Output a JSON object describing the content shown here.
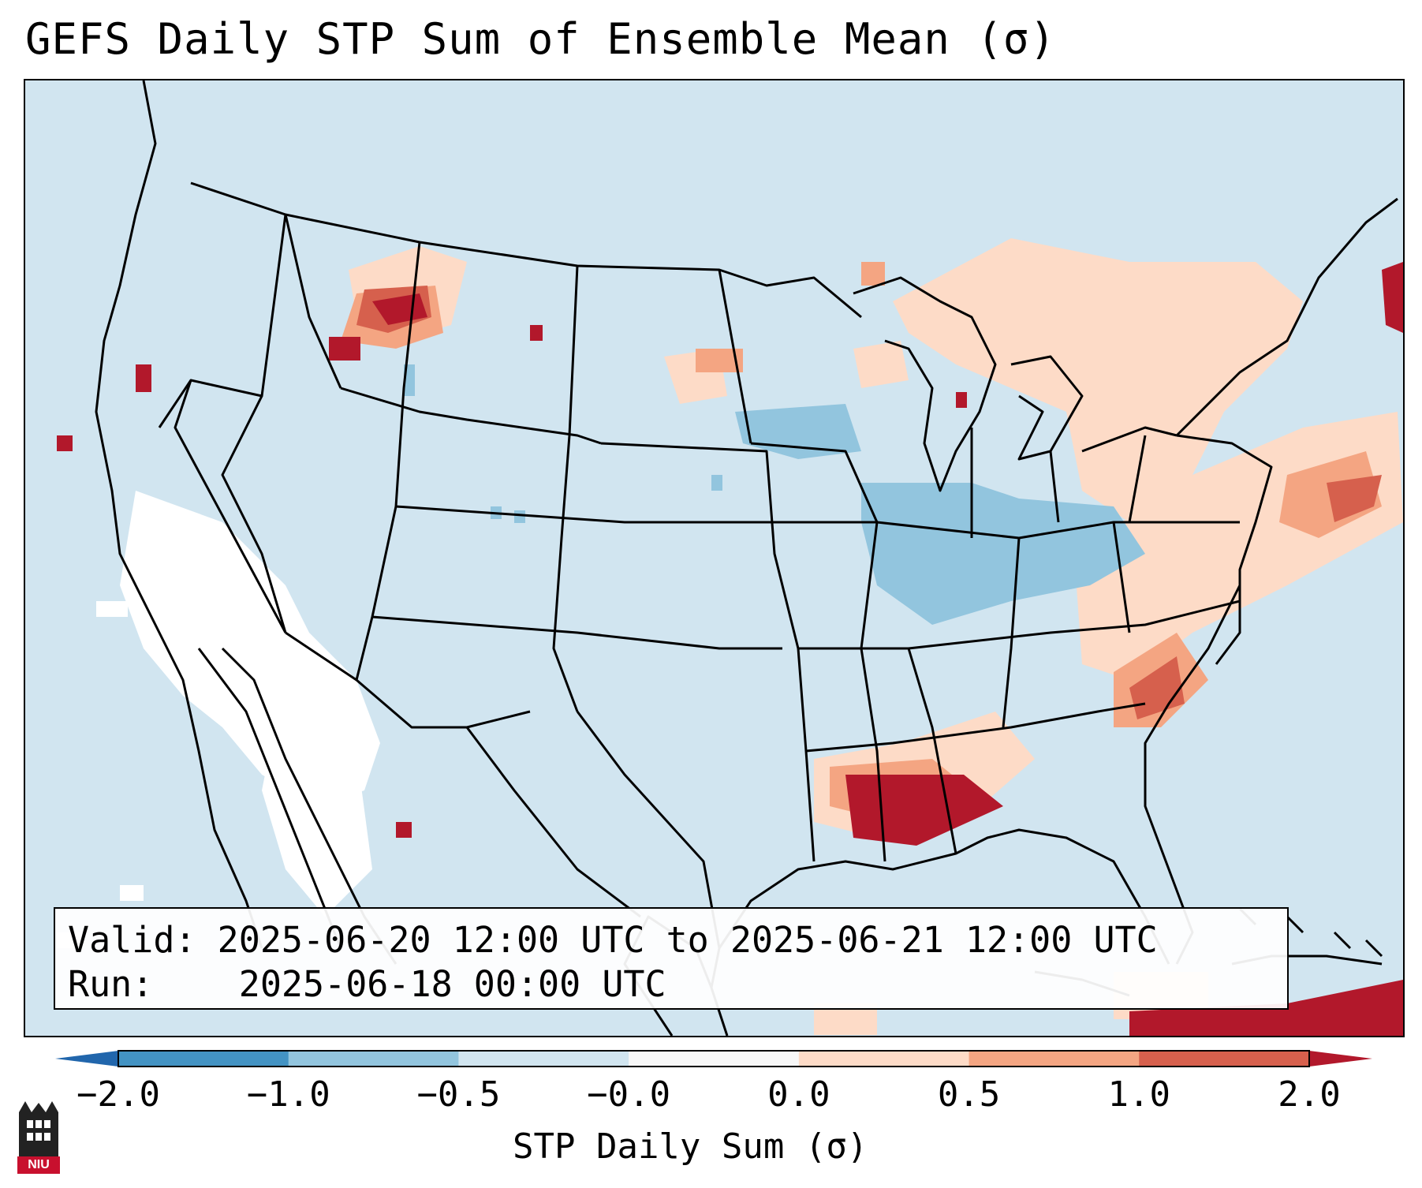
{
  "title": "GEFS Daily STP Sum of Ensemble Mean (σ)",
  "info": {
    "valid_label": "Valid:",
    "valid_value": "2025-06-20 12:00 UTC to 2025-06-21 12:00 UTC",
    "run_label": "Run:",
    "run_value": "2025-06-18 00:00 UTC"
  },
  "colorbar": {
    "label": "STP Daily Sum (σ)",
    "ticks": [
      "−2.0",
      "−1.0",
      "−0.5",
      "−0.0",
      "0.0",
      "0.5",
      "1.0",
      "2.0"
    ],
    "bins": [
      "#2166ac",
      "#4393c3",
      "#92c5de",
      "#d1e5f0",
      "#f7f7f7",
      "#fddbc7",
      "#f4a582",
      "#d6604d",
      "#b2182b"
    ]
  },
  "colors": {
    "background": "#d1e5f0",
    "neutral": "#ffffff",
    "low_positive": "#fddbc7",
    "mid_positive": "#f4a582",
    "high_positive": "#d6604d",
    "max_positive": "#b2182b",
    "low_negative": "#92c5de"
  },
  "map": {
    "region": "Contiguous United States, northern Mexico, southern Canada",
    "features": [
      {
        "name": "northern-rockies-max",
        "level": "max_positive"
      },
      {
        "name": "gulf-coast-max",
        "level": "max_positive"
      },
      {
        "name": "carolina-coast-band",
        "level": "high_positive"
      },
      {
        "name": "atlantic-band",
        "level": "mid_positive"
      },
      {
        "name": "great-lakes-northeast-band",
        "level": "low_positive"
      },
      {
        "name": "ohio-valley-negative",
        "level": "low_negative"
      },
      {
        "name": "southwest-neutral",
        "level": "neutral"
      },
      {
        "name": "cuba-max",
        "level": "max_positive"
      }
    ]
  },
  "logo": {
    "text": "NIU"
  }
}
